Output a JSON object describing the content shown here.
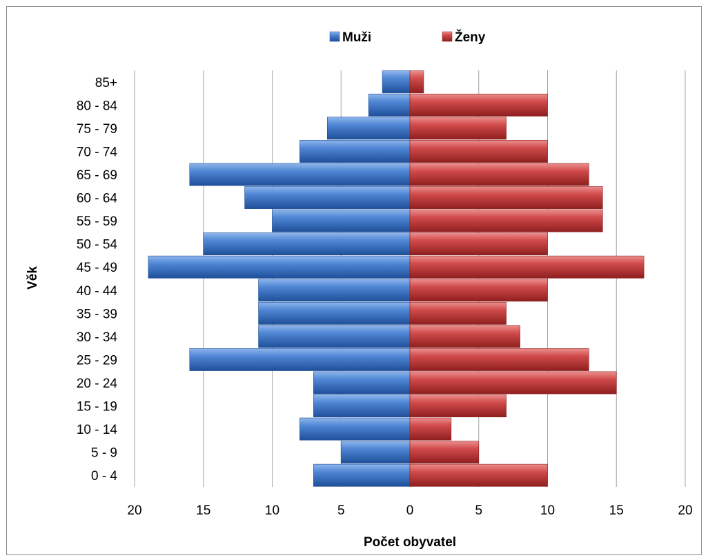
{
  "chart_data": {
    "type": "bar",
    "orientation": "horizontal",
    "layout": "population-pyramid",
    "title": "",
    "xlabel": "Počet obyvatel",
    "ylabel": "Věk",
    "categories": [
      "0 - 4",
      "5 - 9",
      "10 - 14",
      "15 - 19",
      "20 - 24",
      "25 - 29",
      "30 - 34",
      "35 - 39",
      "40 - 44",
      "45 - 49",
      "50 - 54",
      "55 - 59",
      "60 - 64",
      "65 - 69",
      "70 - 74",
      "75 - 79",
      "80 - 84",
      "85+"
    ],
    "series": [
      {
        "name": "Muži",
        "color": "#3c78c8",
        "direction": "left",
        "values": [
          7,
          5,
          8,
          7,
          7,
          16,
          11,
          11,
          11,
          19,
          15,
          10,
          12,
          16,
          8,
          6,
          3,
          2
        ]
      },
      {
        "name": "Ženy",
        "color": "#c83c3c",
        "direction": "right",
        "values": [
          10,
          5,
          3,
          7,
          15,
          13,
          8,
          7,
          10,
          17,
          10,
          14,
          14,
          13,
          10,
          7,
          10,
          1
        ]
      }
    ],
    "xlim": [
      -20,
      20
    ],
    "x_tick_labels": [
      "20",
      "15",
      "10",
      "5",
      "0",
      "5",
      "10",
      "15",
      "20"
    ],
    "grid": "vertical",
    "legend_position": "top"
  }
}
